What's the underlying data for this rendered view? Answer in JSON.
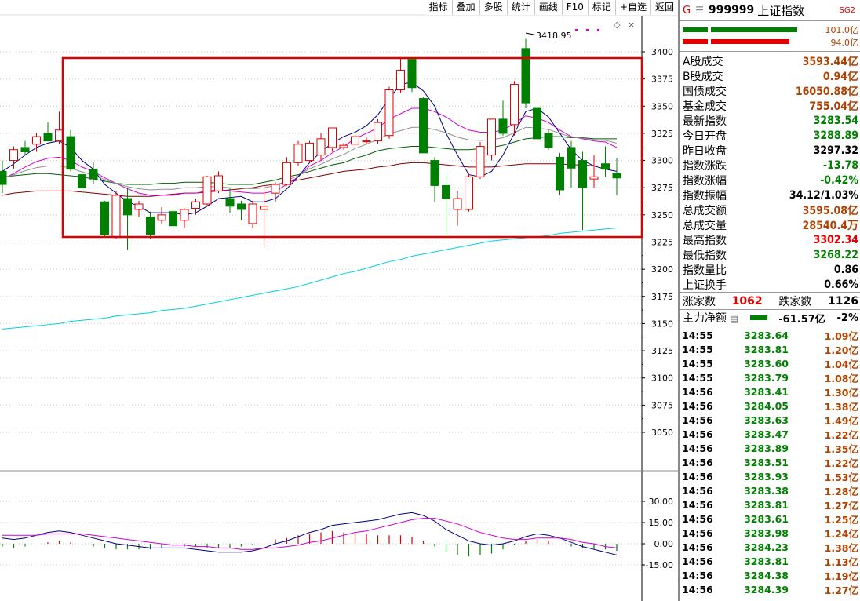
{
  "toolbar": {
    "buttons": [
      "指标",
      "叠加",
      "多股",
      "统计",
      "画线",
      "F10",
      "标记",
      "+自选",
      "返回"
    ]
  },
  "chart": {
    "y_axis_ticks": [
      "3400",
      "3375",
      "3350",
      "3325",
      "3300",
      "3275",
      "3250",
      "3225",
      "3200",
      "3175",
      "3150",
      "3125",
      "3100",
      "3075",
      "3050"
    ],
    "high_label": "3418.95",
    "macd_ticks": [
      "30.00",
      "15.00",
      "0.00",
      "-15.00"
    ]
  },
  "chart_data": {
    "type": "candlestick",
    "ylim": [
      3030,
      3425
    ],
    "ohlc": [
      [
        3290,
        3300,
        3270,
        3278
      ],
      [
        3300,
        3313,
        3292,
        3310
      ],
      [
        3312,
        3318,
        3305,
        3308
      ],
      [
        3315,
        3325,
        3308,
        3322
      ],
      [
        3325,
        3335,
        3318,
        3318
      ],
      [
        3318,
        3345,
        3315,
        3328
      ],
      [
        3322,
        3328,
        3290,
        3292
      ],
      [
        3287,
        3290,
        3268,
        3275
      ],
      [
        3292,
        3298,
        3278,
        3283
      ],
      [
        3262,
        3263,
        3230,
        3232
      ],
      [
        3230,
        3272,
        3228,
        3268
      ],
      [
        3265,
        3275,
        3218,
        3250
      ],
      [
        3255,
        3263,
        3248,
        3260
      ],
      [
        3248,
        3253,
        3228,
        3232
      ],
      [
        3245,
        3257,
        3242,
        3250
      ],
      [
        3253,
        3256,
        3238,
        3240
      ],
      [
        3245,
        3256,
        3238,
        3255
      ],
      [
        3256,
        3265,
        3250,
        3262
      ],
      [
        3260,
        3286,
        3258,
        3285
      ],
      [
        3272,
        3290,
        3270,
        3286
      ],
      [
        3265,
        3275,
        3252,
        3258
      ],
      [
        3260,
        3263,
        3245,
        3255
      ],
      [
        3242,
        3263,
        3238,
        3260
      ],
      [
        3255,
        3275,
        3222,
        3258
      ],
      [
        3270,
        3280,
        3262,
        3278
      ],
      [
        3278,
        3303,
        3277,
        3298
      ],
      [
        3298,
        3318,
        3295,
        3315
      ],
      [
        3300,
        3318,
        3298,
        3316
      ],
      [
        3305,
        3325,
        3300,
        3320
      ],
      [
        3312,
        3330,
        3308,
        3330
      ],
      [
        3312,
        3316,
        3310,
        3314
      ],
      [
        3315,
        3325,
        3313,
        3322
      ],
      [
        3318,
        3322,
        3315,
        3318
      ],
      [
        3318,
        3338,
        3315,
        3335
      ],
      [
        3323,
        3368,
        3320,
        3365
      ],
      [
        3365,
        3395,
        3362,
        3383
      ],
      [
        3393,
        3395,
        3363,
        3367
      ],
      [
        3357,
        3358,
        3310,
        3307
      ],
      [
        3300,
        3303,
        3262,
        3277
      ],
      [
        3277,
        3288,
        3230,
        3265
      ],
      [
        3255,
        3272,
        3240,
        3265
      ],
      [
        3255,
        3288,
        3253,
        3285
      ],
      [
        3285,
        3317,
        3283,
        3313
      ],
      [
        3305,
        3338,
        3300,
        3338
      ],
      [
        3338,
        3355,
        3323,
        3325
      ],
      [
        3333,
        3373,
        3323,
        3370
      ],
      [
        3403,
        3412,
        3348,
        3353
      ],
      [
        3348,
        3350,
        3322,
        3320
      ],
      [
        3325,
        3328,
        3310,
        3312
      ],
      [
        3303,
        3307,
        3268,
        3273
      ],
      [
        3312,
        3318,
        3275,
        3293
      ],
      [
        3300,
        3308,
        3236,
        3275
      ],
      [
        3283,
        3305,
        3275,
        3285
      ],
      [
        3297,
        3313,
        3285,
        3292
      ],
      [
        3288,
        3302,
        3268,
        3284
      ]
    ],
    "ma_short": [
      3290,
      3297,
      3305,
      3312,
      3316,
      3318,
      3312,
      3300,
      3292,
      3278,
      3270,
      3262,
      3258,
      3252,
      3252,
      3252,
      3250,
      3252,
      3258,
      3265,
      3266,
      3267,
      3262,
      3262,
      3265,
      3274,
      3285,
      3298,
      3308,
      3316,
      3322,
      3326,
      3332,
      3342,
      3357,
      3370,
      3372,
      3364,
      3350,
      3325,
      3305,
      3287,
      3285,
      3290,
      3305,
      3325,
      3345,
      3348,
      3340,
      3325,
      3310,
      3300,
      3295,
      3292,
      3290
    ],
    "ma_mid": [
      3283,
      3288,
      3294,
      3299,
      3302,
      3303,
      3300,
      3294,
      3290,
      3284,
      3279,
      3274,
      3270,
      3268,
      3268,
      3268,
      3270,
      3270,
      3272,
      3273,
      3272,
      3271,
      3270,
      3270,
      3272,
      3278,
      3285,
      3295,
      3300,
      3307,
      3313,
      3320,
      3325,
      3330,
      3338,
      3343,
      3348,
      3348,
      3345,
      3340,
      3333,
      3328,
      3326,
      3326,
      3328,
      3334,
      3341,
      3339,
      3335,
      3328,
      3322,
      3320,
      3318,
      3317,
      3312
    ],
    "ma_long1": [
      3285,
      3286,
      3287,
      3288,
      3288,
      3287,
      3286,
      3285,
      3283,
      3281,
      3279,
      3278,
      3278,
      3278,
      3279,
      3279,
      3280,
      3280,
      3280,
      3279,
      3278,
      3278,
      3278,
      3280,
      3282,
      3285,
      3287,
      3290,
      3293,
      3296,
      3298,
      3302,
      3305,
      3309,
      3311,
      3312,
      3313,
      3313,
      3312,
      3311,
      3310,
      3310,
      3311,
      3312,
      3314,
      3317,
      3320,
      3321,
      3322,
      3322,
      3321,
      3321,
      3320,
      3320,
      3320
    ],
    "ma_long2": [
      3268,
      3270,
      3271,
      3272,
      3272,
      3272,
      3272,
      3271,
      3270,
      3269,
      3268,
      3267,
      3267,
      3267,
      3268,
      3269,
      3270,
      3270,
      3271,
      3272,
      3273,
      3274,
      3275,
      3277,
      3278,
      3280,
      3282,
      3284,
      3286,
      3288,
      3290,
      3291,
      3292,
      3294,
      3295,
      3297,
      3298,
      3298,
      3297,
      3296,
      3295,
      3294,
      3294,
      3294,
      3295,
      3296,
      3297,
      3297,
      3297,
      3297,
      3296,
      3296,
      3295,
      3295,
      3295
    ],
    "ma_long3": [
      3198,
      3200,
      3202,
      3204,
      3205,
      3206,
      3207,
      3208,
      3209,
      3210,
      3211,
      3212,
      3213,
      3214,
      3215,
      3217,
      3219,
      3221,
      3223,
      3225,
      3227,
      3229,
      3231,
      3233,
      3235,
      3237,
      3239,
      3241,
      3243,
      3245,
      3247,
      3249,
      3252,
      3254,
      3256,
      3258,
      3260,
      3262,
      3264,
      3266,
      3268,
      3270,
      3272,
      3274,
      3276,
      3278,
      3280,
      3282,
      3284,
      3286,
      3288,
      3290,
      3292,
      3294,
      3296
    ],
    "ma_long4": [
      3145,
      3146,
      3147,
      3148,
      3149,
      3150,
      3152,
      3153,
      3154,
      3155,
      3157,
      3158,
      3159,
      3160,
      3162,
      3163,
      3164,
      3166,
      3168,
      3170,
      3172,
      3174,
      3176,
      3178,
      3180,
      3182,
      3184,
      3187,
      3190,
      3193,
      3196,
      3198,
      3201,
      3204,
      3207,
      3209,
      3212,
      3214,
      3216,
      3218,
      3220,
      3222,
      3224,
      3226,
      3227,
      3228,
      3229,
      3230,
      3231,
      3233,
      3234,
      3235,
      3236,
      3237,
      3238
    ],
    "macd": {
      "ylim": [
        -28,
        42
      ],
      "dif": [
        4,
        3,
        4,
        6,
        8,
        9,
        8,
        6,
        4,
        2,
        0,
        -1,
        -2,
        -3,
        -3,
        -3,
        -3,
        -4,
        -5,
        -6,
        -6,
        -6,
        -5,
        -3,
        0,
        2,
        5,
        8,
        10,
        13,
        14,
        15,
        16,
        17,
        19,
        21,
        22,
        20,
        16,
        10,
        6,
        2,
        0,
        -1,
        0,
        2,
        5,
        7,
        6,
        4,
        1,
        -2,
        -4,
        -6,
        -8
      ],
      "dea": [
        6,
        6,
        6,
        6,
        7,
        7,
        7,
        7,
        6,
        5,
        4,
        3,
        2,
        1,
        0,
        -1,
        -1,
        -2,
        -2,
        -3,
        -3,
        -4,
        -4,
        -3,
        -3,
        -2,
        -1,
        1,
        2,
        4,
        6,
        8,
        9,
        11,
        13,
        15,
        17,
        18,
        18,
        16,
        14,
        11,
        8,
        6,
        4,
        3,
        3,
        4,
        4,
        4,
        3,
        1,
        0,
        -2,
        -3
      ],
      "hist": [
        -2,
        -3,
        -2,
        0,
        1,
        2,
        1,
        -1,
        -2,
        -3,
        -4,
        -4,
        -4,
        -4,
        -3,
        -2,
        -2,
        -2,
        -3,
        -3,
        -3,
        -2,
        -1,
        0,
        3,
        4,
        6,
        7,
        8,
        9,
        8,
        7,
        7,
        6,
        6,
        6,
        5,
        2,
        -2,
        -6,
        -8,
        -9,
        -8,
        -7,
        -4,
        -1,
        2,
        3,
        2,
        0,
        -2,
        -3,
        -4,
        -4,
        -5
      ]
    }
  },
  "panel": {
    "title_icon": "G",
    "title_code": "999999",
    "title_name": "上证指数",
    "title_badge": "SG2",
    "bar_top_value": "101.0亿",
    "bar_bottom_value": "94.0亿",
    "stats": [
      {
        "label": "A股成交",
        "value": "3593.44亿",
        "color": "brown"
      },
      {
        "label": "B股成交",
        "value": "0.94亿",
        "color": "brown"
      },
      {
        "label": "国债成交",
        "value": "16050.88亿",
        "color": "brown"
      },
      {
        "label": "基金成交",
        "value": "755.04亿",
        "color": "brown"
      },
      {
        "label": "最新指数",
        "value": "3283.54",
        "color": "green"
      },
      {
        "label": "今日开盘",
        "value": "3288.89",
        "color": "green"
      },
      {
        "label": "昨日收盘",
        "value": "3297.32",
        "color": "black"
      },
      {
        "label": "指数涨跌",
        "value": "-13.78",
        "color": "green"
      },
      {
        "label": "指数涨幅",
        "value": "-0.42%",
        "color": "green"
      },
      {
        "label": "指数振幅",
        "value": "34.12/1.03%",
        "color": "black"
      },
      {
        "label": "总成交额",
        "value": "3595.08亿",
        "color": "brown"
      },
      {
        "label": "总成交量",
        "value": "28540.4万",
        "color": "brown"
      },
      {
        "label": "最高指数",
        "value": "3302.34",
        "color": "red"
      },
      {
        "label": "最低指数",
        "value": "3268.22",
        "color": "green"
      },
      {
        "label": "指数量比",
        "value": "0.86",
        "color": "black"
      },
      {
        "label": "上证换手",
        "value": "0.66%",
        "color": "black"
      }
    ],
    "rise_label": "涨家数",
    "rise_value": "1062",
    "fall_label": "跌家数",
    "fall_value": "1126",
    "main_flow_label": "主力净额",
    "main_flow_value": "-61.57亿",
    "main_flow_pct": "-2%",
    "ticks": [
      [
        "14:55",
        "3283.64",
        "1.09亿"
      ],
      [
        "14:55",
        "3283.81",
        "1.20亿"
      ],
      [
        "14:55",
        "3283.60",
        "1.04亿"
      ],
      [
        "14:55",
        "3283.79",
        "1.08亿"
      ],
      [
        "14:56",
        "3283.41",
        "1.30亿"
      ],
      [
        "14:56",
        "3284.05",
        "1.38亿"
      ],
      [
        "14:56",
        "3283.63",
        "1.49亿"
      ],
      [
        "14:56",
        "3283.47",
        "1.22亿"
      ],
      [
        "14:56",
        "3283.89",
        "1.35亿"
      ],
      [
        "14:56",
        "3283.51",
        "1.22亿"
      ],
      [
        "14:56",
        "3283.93",
        "1.53亿"
      ],
      [
        "14:56",
        "3283.38",
        "1.28亿"
      ],
      [
        "14:56",
        "3283.81",
        "1.27亿"
      ],
      [
        "14:56",
        "3283.61",
        "1.25亿"
      ],
      [
        "14:56",
        "3283.98",
        "1.24亿"
      ],
      [
        "14:56",
        "3284.23",
        "1.38亿"
      ],
      [
        "14:56",
        "3283.81",
        "1.13亿"
      ],
      [
        "14:56",
        "3284.38",
        "1.19亿"
      ],
      [
        "14:56",
        "3284.39",
        "1.27亿"
      ]
    ],
    "colors": {
      "up": "#e00000",
      "down": "#008000",
      "accent": "#b04000"
    }
  }
}
